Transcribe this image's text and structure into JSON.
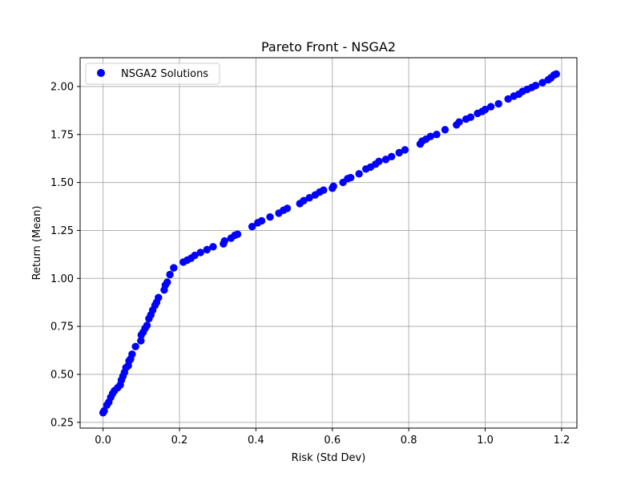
{
  "chart_data": {
    "type": "scatter",
    "title": "Pareto Front - NSGA2",
    "xlabel": "Risk (Std Dev)",
    "ylabel": "Return (Mean)",
    "xlim": [
      -0.06,
      1.24
    ],
    "ylim": [
      0.22,
      2.15
    ],
    "x_ticks": [
      "0.0",
      "0.2",
      "0.4",
      "0.6",
      "0.8",
      "1.0",
      "1.2"
    ],
    "y_ticks": [
      "0.25",
      "0.50",
      "0.75",
      "1.00",
      "1.25",
      "1.50",
      "1.75",
      "2.00"
    ],
    "grid": true,
    "legend_position": "top-left",
    "series": [
      {
        "name": "NSGA2 Solutions",
        "color": "#0000ff",
        "points": [
          [
            0.0,
            0.3
          ],
          [
            0.003,
            0.31
          ],
          [
            0.01,
            0.34
          ],
          [
            0.015,
            0.355
          ],
          [
            0.02,
            0.38
          ],
          [
            0.025,
            0.4
          ],
          [
            0.03,
            0.415
          ],
          [
            0.038,
            0.43
          ],
          [
            0.045,
            0.445
          ],
          [
            0.048,
            0.47
          ],
          [
            0.052,
            0.49
          ],
          [
            0.056,
            0.51
          ],
          [
            0.06,
            0.535
          ],
          [
            0.066,
            0.545
          ],
          [
            0.068,
            0.57
          ],
          [
            0.072,
            0.58
          ],
          [
            0.076,
            0.605
          ],
          [
            0.085,
            0.645
          ],
          [
            0.099,
            0.675
          ],
          [
            0.1,
            0.705
          ],
          [
            0.105,
            0.72
          ],
          [
            0.11,
            0.74
          ],
          [
            0.115,
            0.755
          ],
          [
            0.12,
            0.79
          ],
          [
            0.125,
            0.81
          ],
          [
            0.13,
            0.835
          ],
          [
            0.136,
            0.86
          ],
          [
            0.14,
            0.875
          ],
          [
            0.145,
            0.9
          ],
          [
            0.16,
            0.94
          ],
          [
            0.163,
            0.965
          ],
          [
            0.168,
            0.98
          ],
          [
            0.175,
            1.02
          ],
          [
            0.185,
            1.055
          ],
          [
            0.21,
            1.085
          ],
          [
            0.22,
            1.095
          ],
          [
            0.23,
            1.105
          ],
          [
            0.24,
            1.12
          ],
          [
            0.255,
            1.135
          ],
          [
            0.272,
            1.15
          ],
          [
            0.288,
            1.165
          ],
          [
            0.315,
            1.18
          ],
          [
            0.318,
            1.195
          ],
          [
            0.335,
            1.21
          ],
          [
            0.345,
            1.225
          ],
          [
            0.352,
            1.23
          ],
          [
            0.39,
            1.27
          ],
          [
            0.405,
            1.29
          ],
          [
            0.415,
            1.3
          ],
          [
            0.437,
            1.32
          ],
          [
            0.46,
            1.34
          ],
          [
            0.472,
            1.355
          ],
          [
            0.482,
            1.365
          ],
          [
            0.515,
            1.39
          ],
          [
            0.525,
            1.405
          ],
          [
            0.54,
            1.42
          ],
          [
            0.555,
            1.435
          ],
          [
            0.567,
            1.45
          ],
          [
            0.577,
            1.46
          ],
          [
            0.6,
            1.47
          ],
          [
            0.603,
            1.48
          ],
          [
            0.628,
            1.5
          ],
          [
            0.64,
            1.52
          ],
          [
            0.648,
            1.525
          ],
          [
            0.67,
            1.545
          ],
          [
            0.688,
            1.57
          ],
          [
            0.7,
            1.58
          ],
          [
            0.713,
            1.595
          ],
          [
            0.722,
            1.61
          ],
          [
            0.74,
            1.62
          ],
          [
            0.755,
            1.635
          ],
          [
            0.775,
            1.655
          ],
          [
            0.79,
            1.67
          ],
          [
            0.83,
            1.7
          ],
          [
            0.835,
            1.715
          ],
          [
            0.845,
            1.725
          ],
          [
            0.857,
            1.74
          ],
          [
            0.873,
            1.75
          ],
          [
            0.895,
            1.775
          ],
          [
            0.925,
            1.8
          ],
          [
            0.932,
            1.815
          ],
          [
            0.95,
            1.83
          ],
          [
            0.962,
            1.84
          ],
          [
            0.98,
            1.86
          ],
          [
            0.992,
            1.87
          ],
          [
            1.0,
            1.88
          ],
          [
            1.015,
            1.895
          ],
          [
            1.035,
            1.91
          ],
          [
            1.06,
            1.935
          ],
          [
            1.075,
            1.95
          ],
          [
            1.088,
            1.96
          ],
          [
            1.098,
            1.975
          ],
          [
            1.11,
            1.985
          ],
          [
            1.122,
            1.995
          ],
          [
            1.132,
            2.005
          ],
          [
            1.15,
            2.02
          ],
          [
            1.165,
            2.035
          ],
          [
            1.172,
            2.045
          ],
          [
            1.18,
            2.06
          ],
          [
            1.186,
            2.065
          ]
        ]
      }
    ]
  }
}
